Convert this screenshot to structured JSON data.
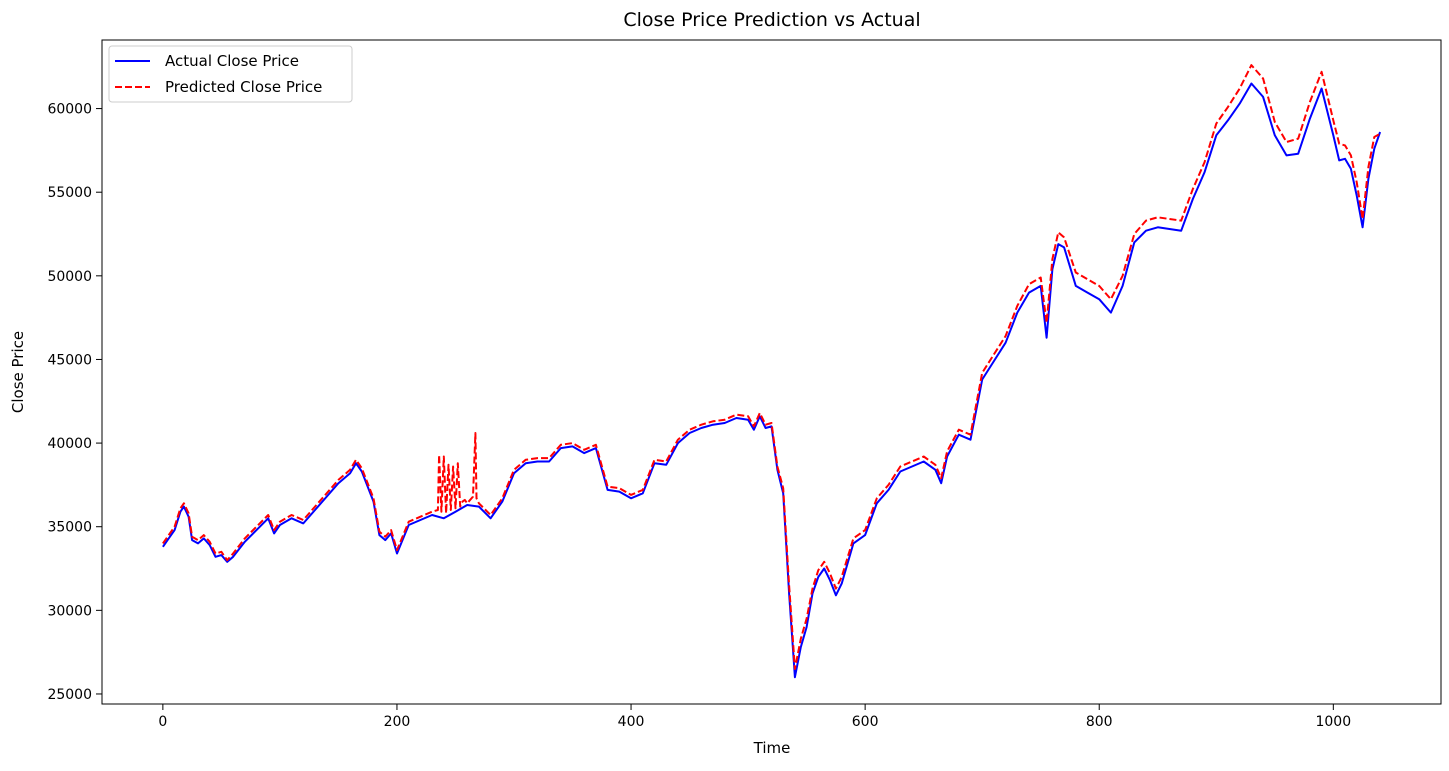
{
  "chart_data": {
    "type": "line",
    "title": "Close Price Prediction vs Actual",
    "xlabel": "Time",
    "ylabel": "Close Price",
    "xlim": [
      -52,
      1092
    ],
    "ylim": [
      24400,
      64100
    ],
    "xticks": [
      0,
      200,
      400,
      600,
      800,
      1000
    ],
    "yticks": [
      25000,
      30000,
      35000,
      40000,
      45000,
      50000,
      55000,
      60000
    ],
    "grid": false,
    "legend_position": "upper left",
    "series": [
      {
        "name": "Actual Close Price",
        "color": "#0000ff",
        "style": "solid",
        "x": [
          0,
          5,
          10,
          15,
          18,
          22,
          25,
          30,
          35,
          40,
          45,
          50,
          55,
          60,
          70,
          80,
          90,
          95,
          100,
          110,
          120,
          130,
          140,
          150,
          160,
          165,
          170,
          180,
          185,
          190,
          195,
          200,
          210,
          220,
          230,
          240,
          250,
          260,
          270,
          280,
          290,
          300,
          310,
          320,
          330,
          340,
          350,
          360,
          370,
          380,
          390,
          400,
          410,
          420,
          430,
          440,
          450,
          460,
          470,
          480,
          490,
          500,
          505,
          510,
          515,
          520,
          525,
          530,
          535,
          538,
          540,
          545,
          550,
          555,
          560,
          565,
          570,
          575,
          580,
          590,
          600,
          610,
          620,
          630,
          640,
          650,
          660,
          665,
          670,
          680,
          690,
          700,
          710,
          720,
          730,
          740,
          750,
          755,
          760,
          765,
          770,
          780,
          790,
          800,
          810,
          820,
          830,
          840,
          850,
          860,
          870,
          880,
          890,
          900,
          910,
          920,
          930,
          940,
          950,
          960,
          970,
          980,
          990,
          1000,
          1005,
          1010,
          1015,
          1020,
          1025,
          1030,
          1035,
          1040
        ],
        "values": [
          33800,
          34300,
          34800,
          35900,
          36200,
          35600,
          34200,
          34000,
          34300,
          33900,
          33200,
          33300,
          32900,
          33200,
          34100,
          34800,
          35500,
          34600,
          35100,
          35500,
          35200,
          36000,
          36800,
          37600,
          38200,
          38800,
          38300,
          36500,
          34500,
          34200,
          34600,
          33400,
          35100,
          35400,
          35700,
          35500,
          35900,
          36300,
          36200,
          35500,
          36500,
          38200,
          38800,
          38900,
          38900,
          39700,
          39800,
          39400,
          39700,
          37200,
          37100,
          36700,
          37000,
          38800,
          38700,
          40000,
          40600,
          40900,
          41100,
          41200,
          41500,
          41400,
          40800,
          41600,
          40900,
          41000,
          38400,
          37000,
          31000,
          28000,
          26000,
          27800,
          29000,
          31000,
          32000,
          32500,
          31800,
          30900,
          31600,
          34000,
          34500,
          36400,
          37200,
          38300,
          38600,
          38900,
          38400,
          37600,
          39200,
          40500,
          40200,
          43800,
          44900,
          46000,
          47800,
          49000,
          49400,
          46300,
          50400,
          51900,
          51700,
          49400,
          49000,
          48600,
          47800,
          49400,
          52000,
          52700,
          52900,
          52800,
          52700,
          54600,
          56200,
          58400,
          59300,
          60300,
          61500,
          60700,
          58400,
          57200,
          57300,
          59400,
          61200,
          58400,
          56900,
          57000,
          56400,
          54800,
          52900,
          55800,
          57600,
          58600
        ]
      },
      {
        "name": "Predicted Close Price",
        "color": "#ff0000",
        "style": "dashed",
        "x": [
          0,
          5,
          10,
          15,
          18,
          22,
          25,
          30,
          35,
          40,
          45,
          50,
          55,
          60,
          70,
          80,
          90,
          95,
          100,
          110,
          120,
          130,
          140,
          150,
          160,
          165,
          170,
          180,
          185,
          190,
          195,
          200,
          210,
          220,
          230,
          235,
          236,
          238,
          240,
          242,
          244,
          246,
          248,
          250,
          252,
          254,
          256,
          258,
          260,
          265,
          267,
          268,
          270,
          280,
          290,
          300,
          310,
          320,
          330,
          340,
          350,
          360,
          370,
          380,
          390,
          400,
          410,
          420,
          430,
          440,
          450,
          460,
          470,
          480,
          490,
          500,
          505,
          510,
          515,
          520,
          525,
          530,
          535,
          538,
          540,
          545,
          550,
          555,
          560,
          565,
          570,
          575,
          580,
          590,
          600,
          610,
          620,
          630,
          640,
          650,
          660,
          665,
          670,
          680,
          690,
          700,
          710,
          720,
          730,
          740,
          750,
          755,
          760,
          765,
          770,
          780,
          790,
          800,
          810,
          820,
          830,
          840,
          850,
          860,
          870,
          880,
          890,
          900,
          910,
          920,
          930,
          940,
          950,
          960,
          970,
          980,
          990,
          1000,
          1005,
          1010,
          1015,
          1020,
          1025,
          1030,
          1035,
          1040
        ],
        "values": [
          34000,
          34500,
          35000,
          36100,
          36400,
          35800,
          34400,
          34200,
          34500,
          34100,
          33400,
          33500,
          33000,
          33400,
          34300,
          35000,
          35700,
          34800,
          35300,
          35700,
          35400,
          36200,
          37000,
          37800,
          38400,
          39000,
          38500,
          36700,
          34700,
          34400,
          34800,
          33600,
          35300,
          35600,
          35900,
          36000,
          39300,
          35900,
          39200,
          35800,
          38700,
          36000,
          38600,
          36100,
          38800,
          36200,
          36500,
          36600,
          36400,
          36800,
          40600,
          36700,
          36400,
          35700,
          36700,
          38400,
          39000,
          39100,
          39100,
          39900,
          40000,
          39600,
          39900,
          37400,
          37300,
          36900,
          37200,
          39000,
          38900,
          40200,
          40800,
          41100,
          41300,
          41400,
          41700,
          41600,
          41000,
          41800,
          41100,
          41200,
          38600,
          37300,
          31500,
          28500,
          26500,
          28300,
          29500,
          31300,
          32400,
          32900,
          32200,
          31300,
          32000,
          34300,
          34800,
          36700,
          37500,
          38600,
          38900,
          39200,
          38700,
          37900,
          39500,
          40800,
          40500,
          44200,
          45300,
          46400,
          48200,
          49500,
          49900,
          47200,
          51000,
          52600,
          52300,
          50200,
          49800,
          49400,
          48600,
          50000,
          52500,
          53300,
          53500,
          53400,
          53300,
          55200,
          56800,
          59100,
          60100,
          61200,
          62600,
          61800,
          59200,
          58000,
          58200,
          60400,
          62200,
          59300,
          57900,
          57800,
          57200,
          55600,
          53400,
          56500,
          58300,
          58500
        ]
      }
    ]
  }
}
